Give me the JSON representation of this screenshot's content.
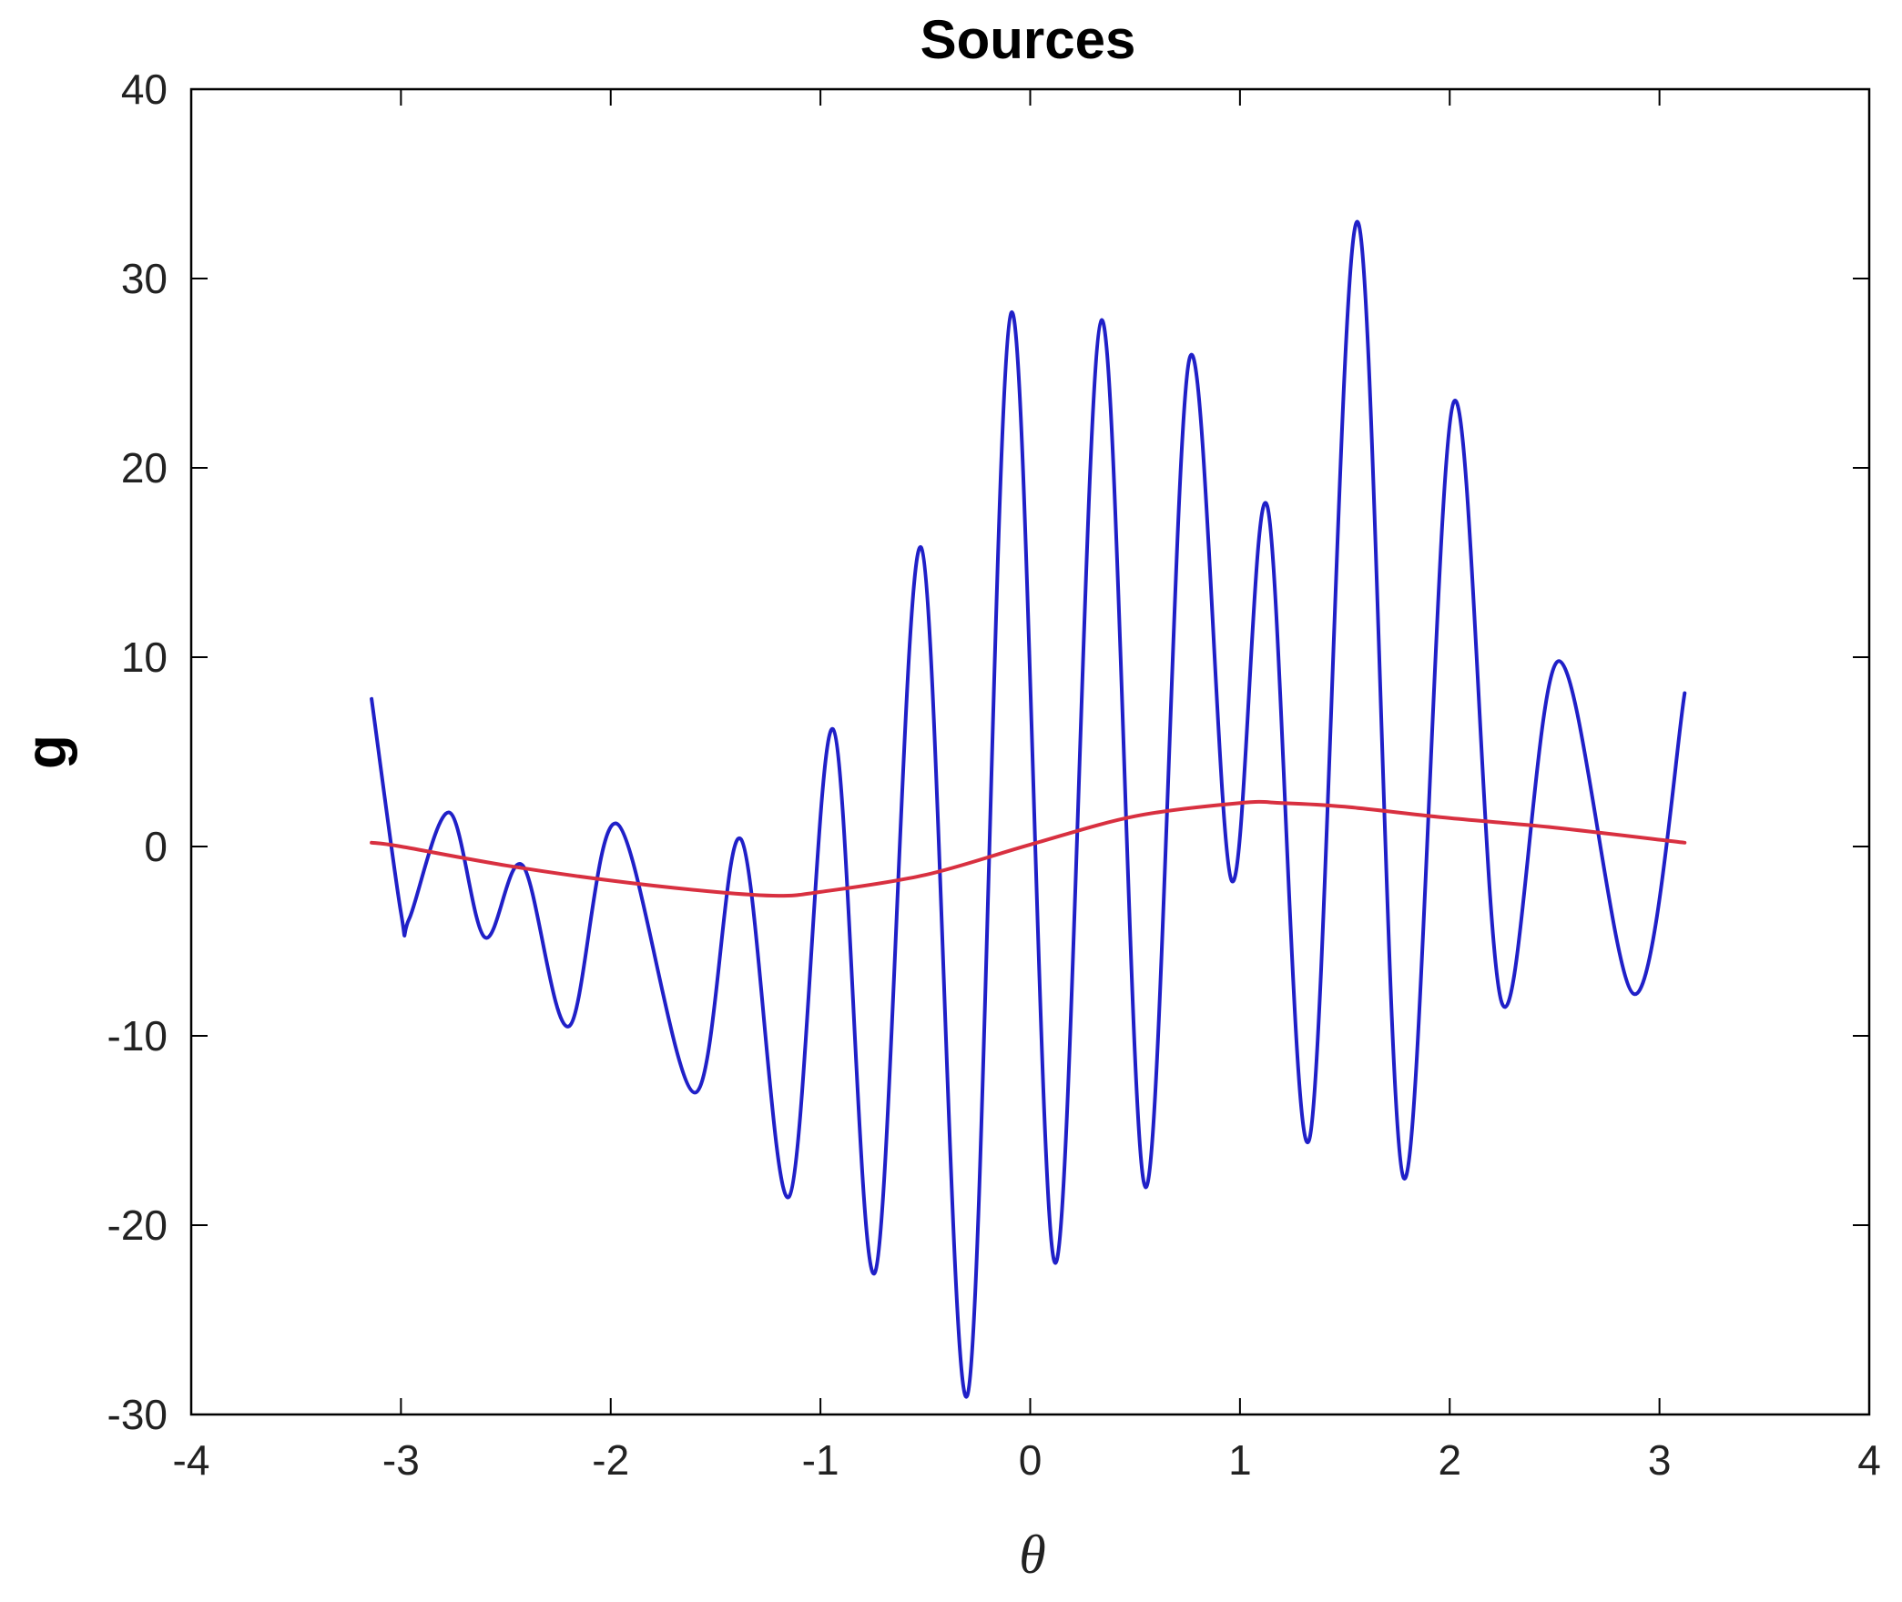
{
  "chart_data": {
    "type": "line",
    "title": "Sources",
    "xlabel": "θ",
    "ylabel": "g",
    "xlim": [
      -4,
      4
    ],
    "ylim": [
      -30,
      40
    ],
    "xticks": [
      -4,
      -3,
      -2,
      -1,
      0,
      1,
      2,
      3,
      4
    ],
    "yticks": [
      -30,
      -20,
      -10,
      0,
      10,
      20,
      30,
      40
    ],
    "xtick_labels": [
      "-4",
      "-3",
      "-2",
      "-1",
      "0",
      "1",
      "2",
      "3",
      "4"
    ],
    "ytick_labels": [
      "-30",
      "-20",
      "-10",
      "0",
      "10",
      "20",
      "30",
      "40"
    ],
    "grid": false,
    "series": [
      {
        "color": "#2020c8",
        "x": [
          -3.14,
          -3.0,
          -2.96,
          -2.77,
          -2.6,
          -2.42,
          -2.2,
          -1.97,
          -1.6,
          -1.38,
          -1.15,
          -0.94,
          -0.74,
          -0.52,
          -0.3,
          -0.09,
          0.12,
          0.34,
          0.55,
          0.76,
          0.96,
          1.13,
          1.33,
          1.56,
          1.78,
          2.02,
          2.25,
          2.52,
          2.88,
          3.12
        ],
        "y": [
          7.8,
          -3.5,
          -3.8,
          1.8,
          -4.8,
          -1.0,
          -9.5,
          1.2,
          -13.0,
          0.4,
          -18.5,
          6.2,
          -22.5,
          15.8,
          -29.0,
          28.2,
          -22.0,
          27.8,
          -18.0,
          25.8,
          -1.8,
          18.0,
          -15.5,
          33.0,
          -17.5,
          23.5,
          -8.3,
          9.8,
          -7.8,
          8.1
        ]
      },
      {
        "color": "#d83040",
        "x": [
          -3.14,
          -3.0,
          -2.5,
          -2.0,
          -1.5,
          -1.2,
          -1.0,
          -0.5,
          0.0,
          0.5,
          1.0,
          1.2,
          1.5,
          2.0,
          2.5,
          3.12
        ],
        "y": [
          0.2,
          0.0,
          -1.0,
          -1.8,
          -2.4,
          -2.6,
          -2.4,
          -1.5,
          0.1,
          1.6,
          2.3,
          2.3,
          2.1,
          1.5,
          1.0,
          0.2
        ]
      }
    ]
  }
}
